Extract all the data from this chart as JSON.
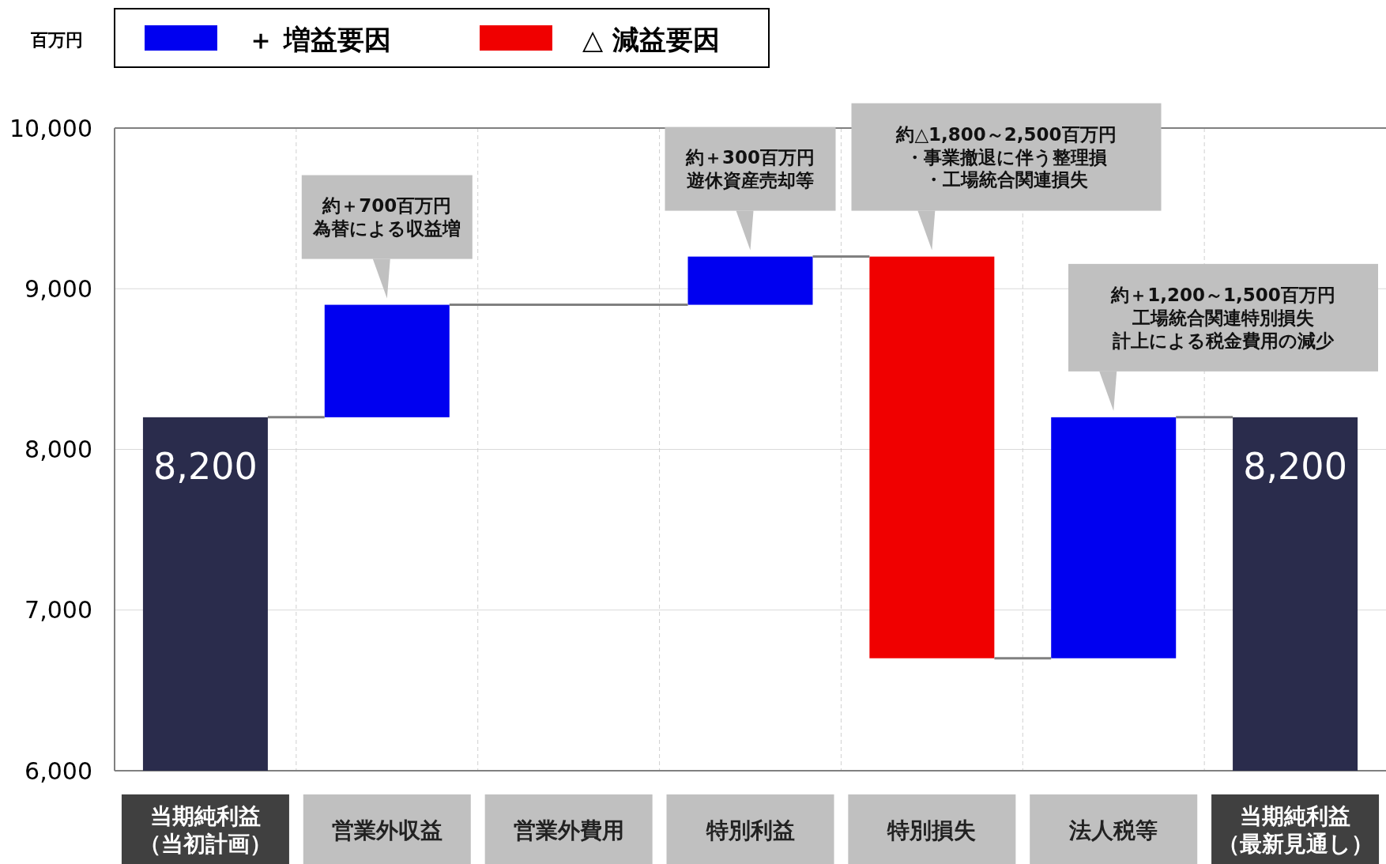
{
  "chart_data": {
    "type": "bar",
    "ylabel": "百万円",
    "categories": [
      "当期純利益（当初計画）",
      "営業外収益",
      "営業外費用",
      "特別利益",
      "特別損失",
      "法人税等",
      "当期純利益（最新見通し）"
    ],
    "series": [
      {
        "name": "＋ 増益要因",
        "color": "#0000f0",
        "values": [
          null,
          700,
          null,
          300,
          null,
          1500,
          null
        ],
        "base": [
          null,
          8200,
          null,
          8900,
          null,
          6700,
          null
        ]
      },
      {
        "name": "△ 減益要因",
        "color": "#f00000",
        "values": [
          null,
          null,
          null,
          null,
          -2500,
          null,
          null
        ],
        "base": [
          null,
          null,
          null,
          null,
          9200,
          null,
          null
        ]
      },
      {
        "color": "#2a2c4c",
        "values": [
          8200,
          null,
          null,
          null,
          null,
          null,
          8200
        ],
        "value_labels": [
          "8,200",
          null,
          null,
          null,
          null,
          null,
          "8,200"
        ]
      }
    ],
    "ylim": [
      6000,
      10000
    ],
    "yticks": [
      {
        "value": 6000,
        "label": "6,000"
      },
      {
        "value": 7000,
        "label": "7,000"
      },
      {
        "value": 8000,
        "label": "8,000"
      },
      {
        "value": 9000,
        "label": "9,000"
      },
      {
        "value": 10000,
        "label": "10,000"
      }
    ],
    "grid": true,
    "legend": "top left",
    "annotations": [
      "約＋700百万円",
      "為替による収益増",
      "約＋300百万円",
      "遊休資産売却等",
      "約△1,800～2,500百万円",
      "・事業撤退に伴う整理損",
      "・工場統合関連損失",
      "約＋1,200～1,500百万円",
      "工場統合関連特別損失",
      "計上による税金費用の減少"
    ]
  }
}
